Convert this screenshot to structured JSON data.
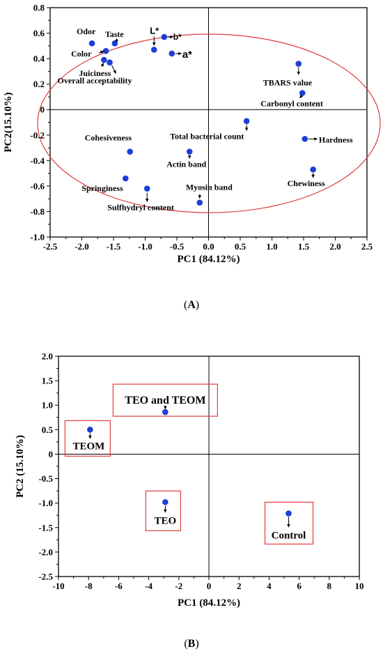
{
  "figure": {
    "caption_a": "A",
    "caption_b": "B"
  },
  "chart_data": [
    {
      "type": "scatter",
      "panel": "A",
      "xlabel": "PC1 (84.12%)",
      "ylabel": "PC2(15.10%)",
      "xlim": [
        -2.5,
        2.5
      ],
      "ylim": [
        -1.0,
        0.8
      ],
      "xticks": [
        -2.5,
        -2.0,
        -1.5,
        -1.0,
        -0.5,
        0,
        0.5,
        1.0,
        1.5,
        2.0,
        2.5
      ],
      "xtick_labels": [
        "-2.5",
        "-2.0",
        "-1.5",
        "-1.0",
        "-0.5",
        "0.0",
        "0.5",
        "1.0",
        "1.5",
        "2.0",
        "2.5"
      ],
      "yticks": [
        -1.0,
        -0.8,
        -0.6,
        -0.4,
        -0.2,
        0,
        0.2,
        0.4,
        0.6,
        0.8
      ],
      "ytick_labels": [
        "-1.0",
        "-0.8",
        "-0.6",
        "-0.4",
        "-0.2",
        "0",
        "0.2",
        "0.4",
        "0.6",
        "0.8"
      ],
      "marker_color": "#1c3fd6",
      "ellipse_color": "#e03a3a",
      "grid": false,
      "points": [
        {
          "label": "Odor",
          "x": -1.84,
          "y": 0.52
        },
        {
          "label": "Taste",
          "x": -1.48,
          "y": 0.52
        },
        {
          "label": "Color",
          "x": -1.62,
          "y": 0.46
        },
        {
          "label": "Juiciness",
          "x": -1.65,
          "y": 0.39
        },
        {
          "label": "Overall acceptability",
          "x": -1.56,
          "y": 0.37
        },
        {
          "label": "L*",
          "x": -0.86,
          "y": 0.47
        },
        {
          "label": "b*",
          "x": -0.7,
          "y": 0.57
        },
        {
          "label": "a*",
          "x": -0.58,
          "y": 0.44
        },
        {
          "label": "TBARS value",
          "x": 1.42,
          "y": 0.36
        },
        {
          "label": "Carbonyl content",
          "x": 1.48,
          "y": 0.13
        },
        {
          "label": "Total bacterial count",
          "x": 0.6,
          "y": -0.09
        },
        {
          "label": "Hardness",
          "x": 1.52,
          "y": -0.23
        },
        {
          "label": "Cohesiveness",
          "x": -1.24,
          "y": -0.33
        },
        {
          "label": "Actin band",
          "x": -0.3,
          "y": -0.33
        },
        {
          "label": "Chewiness",
          "x": 1.65,
          "y": -0.47
        },
        {
          "label": "Springiness",
          "x": -1.31,
          "y": -0.54
        },
        {
          "label": "Sulfhydryl content",
          "x": -0.97,
          "y": -0.62
        },
        {
          "label": "Myosin band",
          "x": -0.14,
          "y": -0.73
        }
      ]
    },
    {
      "type": "scatter",
      "panel": "B",
      "xlabel": "PC1 (84.12%)",
      "ylabel": "PC2 (15.10%)",
      "xlim": [
        -10,
        10
      ],
      "ylim": [
        -2.5,
        2.0
      ],
      "xticks": [
        -10,
        -8,
        -6,
        -4,
        -2,
        0,
        2,
        4,
        6,
        8,
        10
      ],
      "xtick_labels": [
        "-10",
        "-8",
        "-6",
        "-4",
        "-2",
        "0",
        "2",
        "4",
        "6",
        "8",
        "10"
      ],
      "yticks": [
        -2.5,
        -2.0,
        -1.5,
        -1.0,
        -0.5,
        0,
        0.5,
        1.0,
        1.5,
        2.0
      ],
      "ytick_labels": [
        "-2.5",
        "-2.0",
        "-1.5",
        "-1.0",
        "-0.5",
        "0",
        "0.5",
        "1.0",
        "1.5",
        "2.0"
      ],
      "marker_color": "#1c3fd6",
      "box_color": "#e03a3a",
      "grid": false,
      "points": [
        {
          "label": "TEO and TEOM",
          "x": -2.9,
          "y": 0.86
        },
        {
          "label": "TEOM",
          "x": -7.9,
          "y": 0.5
        },
        {
          "label": "TEO",
          "x": -2.9,
          "y": -0.98
        },
        {
          "label": "Control",
          "x": 5.3,
          "y": -1.21
        }
      ]
    }
  ]
}
